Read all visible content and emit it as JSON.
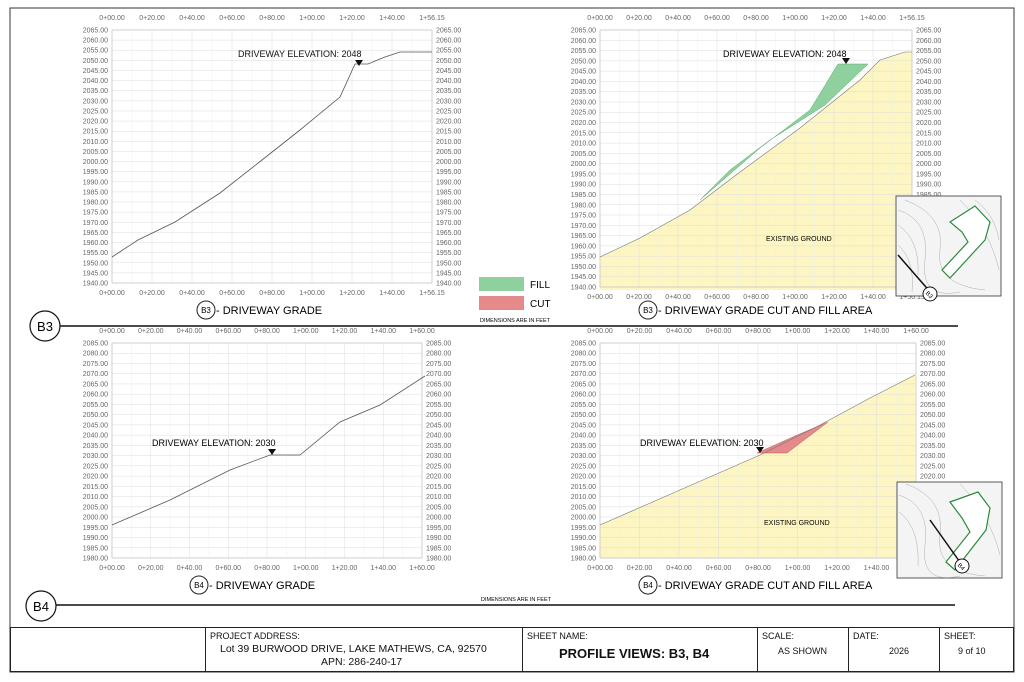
{
  "panels": [
    {
      "id": "b3_grade",
      "x_ticks": [
        "0+00.00",
        "0+20.00",
        "0+40.00",
        "0+60.00",
        "0+80.00",
        "1+00.00",
        "1+20.00",
        "1+40.00",
        "1+56.15"
      ],
      "y_ticks": [
        "2065.00",
        "2060.00",
        "2055.00",
        "2050.00",
        "2045.00",
        "2040.00",
        "2035.00",
        "2030.00",
        "2025.00",
        "2020.00",
        "2015.00",
        "2010.00",
        "2005.00",
        "2000.00",
        "1995.00",
        "1990.00",
        "1985.00",
        "1980.00",
        "1975.00",
        "1970.00",
        "1965.00",
        "1960.00",
        "1955.00",
        "1950.00",
        "1945.00",
        "1940.00"
      ],
      "annotation": "DRIVEWAY ELEVATION: 2048",
      "caption_circle": "B3",
      "caption": " - DRIVEWAY GRADE",
      "existing_ground_label": ""
    },
    {
      "id": "b3_cutfill",
      "x_ticks": [
        "0+00.00",
        "0+20.00",
        "0+40.00",
        "0+60.00",
        "0+80.00",
        "1+00.00",
        "1+20.00",
        "1+40.00",
        "1+56.15"
      ],
      "y_ticks": [
        "2065.00",
        "2060.00",
        "2055.00",
        "2050.00",
        "2045.00",
        "2040.00",
        "2035.00",
        "2030.00",
        "2025.00",
        "2020.00",
        "2015.00",
        "2010.00",
        "2005.00",
        "2000.00",
        "1995.00",
        "1990.00",
        "1985.00",
        "1980.00",
        "1975.00",
        "1970.00",
        "1965.00",
        "1960.00",
        "1955.00",
        "1950.00",
        "1945.00",
        "1940.00"
      ],
      "annotation": "DRIVEWAY ELEVATION: 2048",
      "caption_circle": "B3",
      "caption": " - DRIVEWAY GRADE CUT AND FILL AREA",
      "existing_ground_label": "EXISTING GROUND"
    },
    {
      "id": "b4_grade",
      "x_ticks": [
        "0+00.00",
        "0+20.00",
        "0+40.00",
        "0+60.00",
        "0+80.00",
        "1+00.00",
        "1+20.00",
        "1+40.00",
        "1+60.00"
      ],
      "y_ticks": [
        "2085.00",
        "2080.00",
        "2075.00",
        "2070.00",
        "2065.00",
        "2060.00",
        "2055.00",
        "2050.00",
        "2045.00",
        "2040.00",
        "2035.00",
        "2030.00",
        "2025.00",
        "2020.00",
        "2015.00",
        "2010.00",
        "2005.00",
        "2000.00",
        "1995.00",
        "1990.00",
        "1985.00",
        "1980.00"
      ],
      "annotation": "DRIVEWAY ELEVATION: 2030",
      "caption_circle": "B4",
      "caption": " - DRIVEWAY GRADE",
      "existing_ground_label": ""
    },
    {
      "id": "b4_cutfill",
      "x_ticks": [
        "0+00.00",
        "0+20.00",
        "0+40.00",
        "0+60.00",
        "0+80.00",
        "1+00.00",
        "1+20.00",
        "1+40.00",
        "1+60.00"
      ],
      "y_ticks": [
        "2085.00",
        "2080.00",
        "2075.00",
        "2070.00",
        "2065.00",
        "2060.00",
        "2055.00",
        "2050.00",
        "2045.00",
        "2040.00",
        "2035.00",
        "2030.00",
        "2025.00",
        "2020.00",
        "2015.00",
        "2010.00",
        "2005.00",
        "2000.00",
        "1995.00",
        "1990.00",
        "1985.00",
        "1980.00"
      ],
      "annotation": "DRIVEWAY ELEVATION: 2030",
      "caption_circle": "B4",
      "caption": " - DRIVEWAY GRADE CUT AND FILL AREA",
      "existing_ground_label": "EXISTING GROUND"
    }
  ],
  "legend": {
    "fill_label": "FILL",
    "cut_label": "CUT",
    "fill_color": "#8fd19e",
    "cut_color": "#e58a8a",
    "note": "DIMENSIONS ARE IN FEET"
  },
  "section_b3": {
    "label": "B3"
  },
  "section_b4": {
    "label": "B4",
    "note": "DIMENSIONS ARE IN FEET"
  },
  "key_map_labels": [
    "B3",
    "B4"
  ],
  "colors": {
    "existing_ground": "#fdf6c3",
    "fill": "#8fd19e",
    "cut": "#e58a8a",
    "grid": "#d9d9d9",
    "line": "#555555"
  },
  "title_block": {
    "project_label": "PROJECT ADDRESS:",
    "address": "Lot 39 BURWOOD DRIVE, LAKE MATHEWS, CA, 92570",
    "apn": "APN: 286-240-17",
    "sheet_name_label": "SHEET NAME:",
    "sheet_name": "PROFILE VIEWS: B3, B4",
    "scale_label": "SCALE:",
    "scale": "AS SHOWN",
    "date_label": "DATE:",
    "date": "2026",
    "sheet_label": "SHEET:",
    "sheet": "9 of 10"
  }
}
